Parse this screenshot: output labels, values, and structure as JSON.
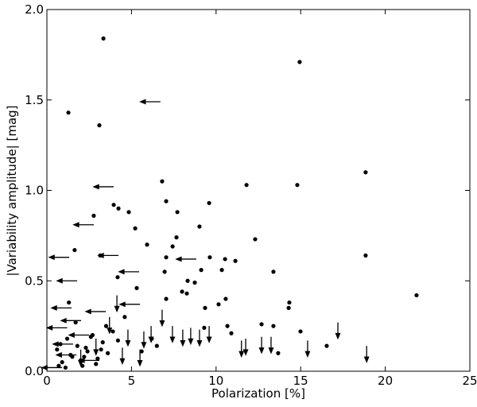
{
  "chart_data": {
    "type": "scatter",
    "xlabel": "Polarization [%]",
    "ylabel": "|Variability amplitude| [mag]",
    "xlim": [
      0,
      25
    ],
    "ylim": [
      0,
      2.0
    ],
    "xticks": [
      0,
      5,
      10,
      15,
      20,
      25
    ],
    "yticks": [
      {
        "value": 0,
        "label": "0.0"
      },
      {
        "value": 0.5,
        "label": "0.5"
      },
      {
        "value": 1.0,
        "label": "1.0"
      },
      {
        "value": 1.5,
        "label": "1.5"
      },
      {
        "value": 2.0,
        "label": "2.0"
      }
    ],
    "color": "#000000",
    "series": [
      {
        "marker": "dot",
        "x": [
          3.34,
          14.94,
          1.27,
          3.1,
          6.81,
          11.8,
          14.8,
          18.84,
          3.95,
          4.23,
          4.84,
          2.77,
          7.05,
          9.59,
          7.71,
          5.22,
          9.02,
          7.66,
          12.31,
          5.92,
          7.43,
          1.64,
          10.53,
          11.14,
          18.84,
          3.15,
          7.05,
          9.63,
          10.34,
          9.12,
          13.39,
          6.96,
          4.18,
          8.32,
          8.74,
          21.85,
          7.99,
          8.27,
          5.31,
          14.33,
          14.29,
          10.57,
          10.15,
          9.35,
          7.05,
          12.69,
          13.39,
          10.67,
          10.9,
          14.99,
          13.67,
          16.54,
          9.3,
          0.6,
          0.9,
          1.2,
          1.5,
          1.8,
          2.1,
          2.4,
          2.7,
          3.0,
          3.3,
          3.6,
          3.9,
          0.8,
          1.1,
          1.4,
          1.7,
          2.0,
          2.3,
          2.6,
          2.9,
          3.2,
          3.5,
          4.2,
          4.6,
          6.5,
          6.2,
          5.6,
          1.3,
          2.2,
          0.7
        ],
        "y": [
          1.84,
          1.71,
          1.43,
          1.36,
          1.05,
          1.03,
          1.03,
          1.1,
          0.92,
          0.9,
          0.88,
          0.86,
          0.94,
          0.93,
          0.88,
          0.79,
          0.8,
          0.74,
          0.73,
          0.7,
          0.69,
          0.67,
          0.62,
          0.61,
          0.64,
          0.64,
          0.63,
          0.63,
          0.56,
          0.56,
          0.55,
          0.55,
          0.52,
          0.5,
          0.49,
          0.42,
          0.44,
          0.43,
          0.46,
          0.38,
          0.35,
          0.4,
          0.37,
          0.35,
          0.4,
          0.26,
          0.25,
          0.25,
          0.21,
          0.22,
          0.1,
          0.14,
          0.24,
          0.12,
          0.05,
          0.18,
          0.08,
          0.14,
          0.03,
          0.11,
          0.2,
          0.07,
          0.16,
          0.1,
          0.22,
          0.15,
          0.02,
          0.09,
          0.27,
          0.06,
          0.13,
          0.19,
          0.04,
          0.12,
          0.25,
          0.17,
          0.3,
          0.14,
          0.18,
          0.11,
          0.38,
          0.08,
          0.03
        ]
      },
      {
        "marker": "left-arrow",
        "x": [
          6.71,
          3.95,
          2.77,
          1.32,
          4.23,
          8.83,
          5.45,
          1.79,
          5.5,
          1.46,
          3.48,
          2.02,
          1.2,
          1.55,
          1.75,
          2.5,
          3.1,
          0.9
        ],
        "y": [
          1.49,
          1.02,
          0.81,
          0.63,
          0.64,
          0.62,
          0.55,
          0.5,
          0.37,
          0.35,
          0.33,
          0.28,
          0.24,
          0.15,
          0.09,
          0.2,
          0.06,
          0.02
        ]
      },
      {
        "marker": "down-arrow",
        "x": [
          17.2,
          18.9,
          15.41,
          11.75,
          12.69,
          13.25,
          11.5,
          9.59,
          9.02,
          8.5,
          8.03,
          7.42,
          6.81,
          6.16,
          5.73,
          5.5,
          4.46,
          4.14,
          4.79,
          3.7,
          2.9,
          2.0
        ],
        "y": [
          0.27,
          0.14,
          0.17,
          0.18,
          0.19,
          0.19,
          0.17,
          0.25,
          0.23,
          0.24,
          0.23,
          0.25,
          0.34,
          0.25,
          0.22,
          0.12,
          0.13,
          0.42,
          0.23,
          0.3,
          0.18,
          0.12
        ]
      }
    ]
  }
}
